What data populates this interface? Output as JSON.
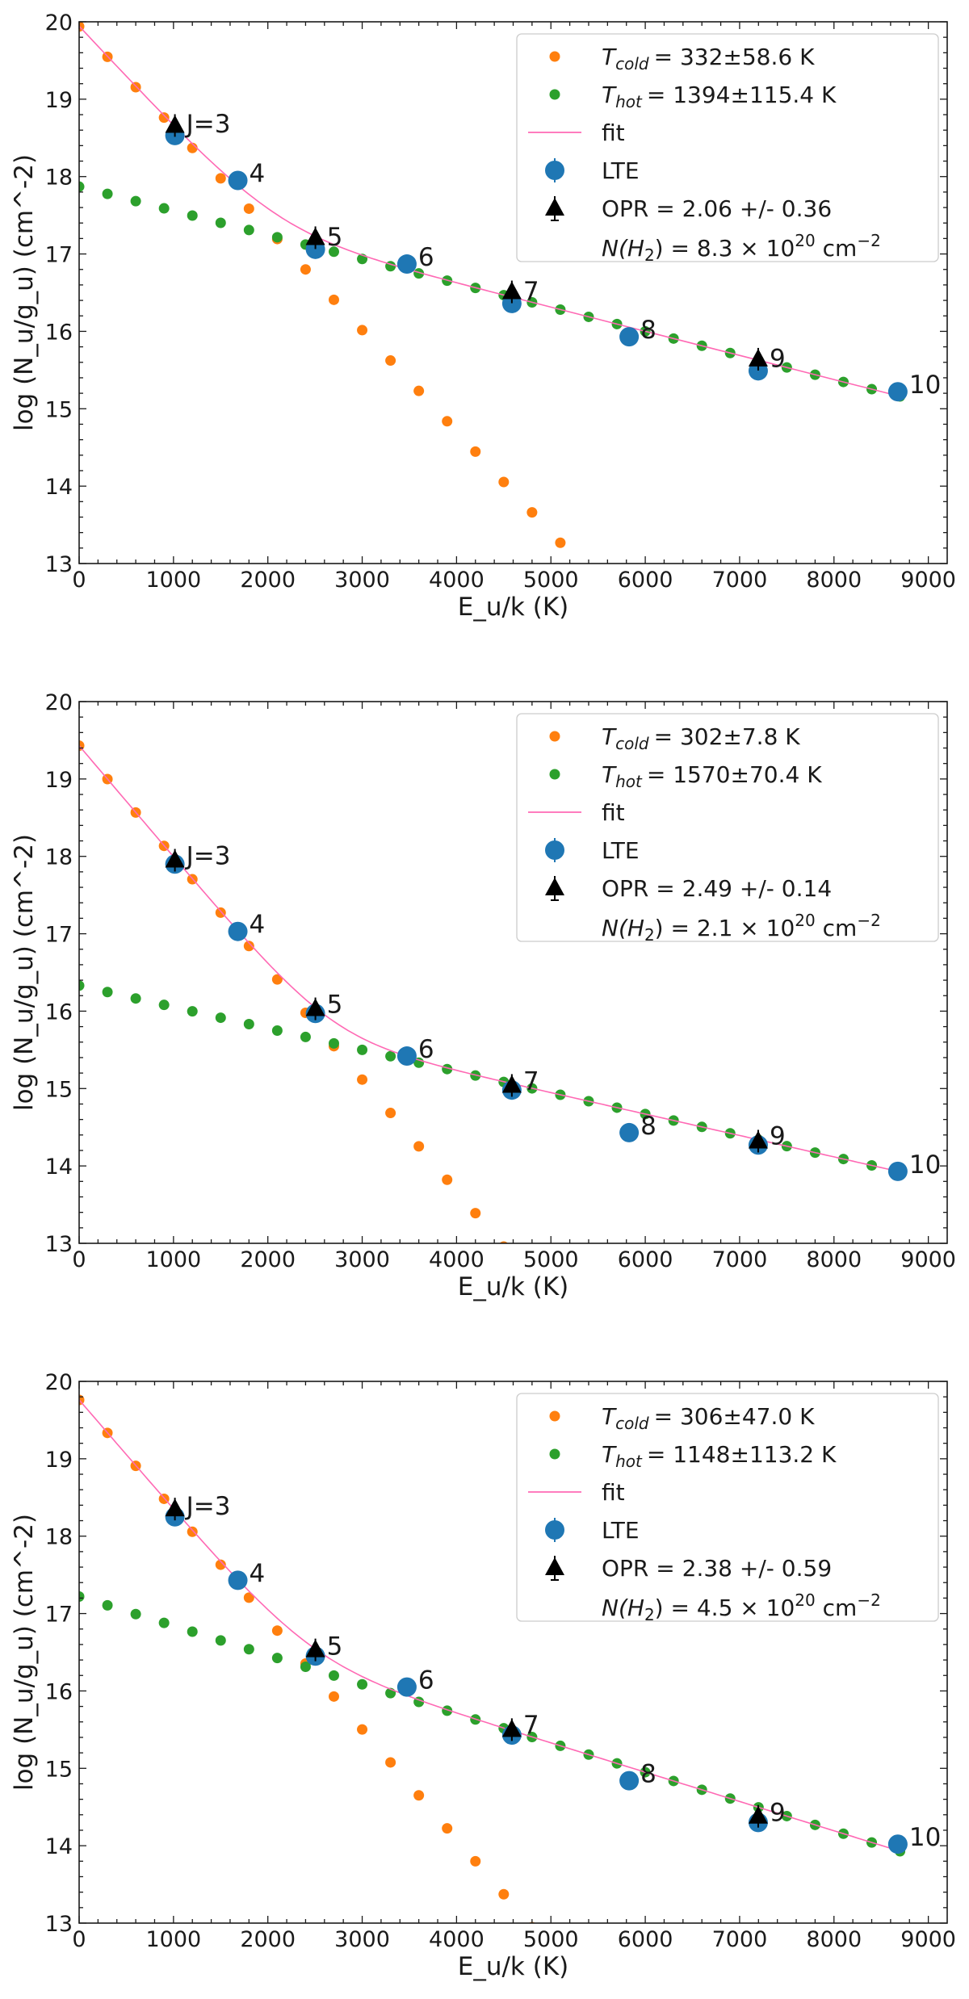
{
  "chart_data": [
    {
      "type": "scatter",
      "xlabel": "E_u/k (K)",
      "ylabel": "log (N_u/g_u) (cm^-2)",
      "xlim": [
        0,
        9200
      ],
      "ylim": [
        13,
        20
      ],
      "xticks": [
        0,
        1000,
        2000,
        3000,
        4000,
        5000,
        6000,
        7000,
        8000,
        9000
      ],
      "yticks": [
        13,
        14,
        15,
        16,
        17,
        18,
        19,
        20
      ],
      "legend": {
        "position": "top-right",
        "cold": {
          "label": "T",
          "sub": "cold",
          "value": "= 332±58.6 K"
        },
        "hot": {
          "label": "T",
          "sub": "hot",
          "value": "= 1394±115.4 K"
        },
        "fit": "fit",
        "lte": "LTE",
        "opr": "OPR = 2.06 +/- 0.36",
        "column": {
          "prefix": "N(H",
          "sub": "2",
          "mid": ") = 8.3 × 10",
          "exp": "20",
          "unit": " cm",
          "unit_exp": "−2"
        }
      },
      "model": {
        "cold_amp": 19.94,
        "cold_temp": 332,
        "hot_amp": 17.87,
        "hot_temp": 1394
      },
      "lte_points": [
        {
          "x": 1015,
          "y": 18.53,
          "err": 0.05
        },
        {
          "x": 1682,
          "y": 17.95,
          "err": 0.05
        },
        {
          "x": 2504,
          "y": 17.06,
          "err": 0.05
        },
        {
          "x": 3474,
          "y": 16.87,
          "err": 0.05
        },
        {
          "x": 4586,
          "y": 16.36,
          "err": 0.05
        },
        {
          "x": 5829,
          "y": 15.93,
          "err": 0.05
        },
        {
          "x": 7197,
          "y": 15.49,
          "err": 0.05
        },
        {
          "x": 8677,
          "y": 15.22,
          "err": 0.05
        }
      ],
      "opr_points": [
        {
          "x": 1015,
          "y": 18.66
        },
        {
          "x": 2504,
          "y": 17.21
        },
        {
          "x": 4586,
          "y": 16.51
        },
        {
          "x": 7197,
          "y": 15.64
        }
      ],
      "j_labels": [
        {
          "x": 1015,
          "y": 18.59,
          "text": "J=3"
        },
        {
          "x": 1682,
          "y": 17.95,
          "text": "4"
        },
        {
          "x": 2504,
          "y": 17.13,
          "text": "5"
        },
        {
          "x": 3474,
          "y": 16.87,
          "text": "6"
        },
        {
          "x": 4586,
          "y": 16.43,
          "text": "7"
        },
        {
          "x": 5829,
          "y": 15.93,
          "text": "8"
        },
        {
          "x": 7197,
          "y": 15.56,
          "text": "9"
        },
        {
          "x": 8677,
          "y": 15.22,
          "text": "10"
        }
      ]
    },
    {
      "type": "scatter",
      "xlabel": "E_u/k (K)",
      "ylabel": "log (N_u/g_u) (cm^-2)",
      "xlim": [
        0,
        9200
      ],
      "ylim": [
        13,
        20
      ],
      "xticks": [
        0,
        1000,
        2000,
        3000,
        4000,
        5000,
        6000,
        7000,
        8000,
        9000
      ],
      "yticks": [
        13,
        14,
        15,
        16,
        17,
        18,
        19,
        20
      ],
      "legend": {
        "position": "top-right",
        "cold": {
          "label": "T",
          "sub": "cold",
          "value": "= 302±7.8 K"
        },
        "hot": {
          "label": "T",
          "sub": "hot",
          "value": "= 1570±70.4 K"
        },
        "fit": "fit",
        "lte": "LTE",
        "opr": "OPR = 2.49 +/- 0.14",
        "column": {
          "prefix": "N(H",
          "sub": "2",
          "mid": ") = 2.1 × 10",
          "exp": "20",
          "unit": " cm",
          "unit_exp": "−2"
        }
      },
      "model": {
        "cold_amp": 19.43,
        "cold_temp": 302,
        "hot_amp": 16.33,
        "hot_temp": 1570
      },
      "lte_points": [
        {
          "x": 1015,
          "y": 17.9,
          "err": 0.05
        },
        {
          "x": 1682,
          "y": 17.03,
          "err": 0.05
        },
        {
          "x": 2504,
          "y": 15.97,
          "err": 0.05
        },
        {
          "x": 3474,
          "y": 15.42,
          "err": 0.05
        },
        {
          "x": 4586,
          "y": 14.98,
          "err": 0.05
        },
        {
          "x": 5829,
          "y": 14.43,
          "err": 0.05
        },
        {
          "x": 7197,
          "y": 14.27,
          "err": 0.05
        },
        {
          "x": 8677,
          "y": 13.93,
          "err": 0.12
        }
      ],
      "opr_points": [
        {
          "x": 1015,
          "y": 17.95
        },
        {
          "x": 2504,
          "y": 16.03
        },
        {
          "x": 4586,
          "y": 15.04
        },
        {
          "x": 7197,
          "y": 14.32
        }
      ],
      "j_labels": [
        {
          "x": 1015,
          "y": 17.92,
          "text": "J=3"
        },
        {
          "x": 1682,
          "y": 17.03,
          "text": "4"
        },
        {
          "x": 2504,
          "y": 16.0,
          "text": "5"
        },
        {
          "x": 3474,
          "y": 15.42,
          "text": "6"
        },
        {
          "x": 4586,
          "y": 15.01,
          "text": "7"
        },
        {
          "x": 5829,
          "y": 14.43,
          "text": "8"
        },
        {
          "x": 7197,
          "y": 14.3,
          "text": "9"
        },
        {
          "x": 8677,
          "y": 13.93,
          "text": "10"
        }
      ]
    },
    {
      "type": "scatter",
      "xlabel": "E_u/k (K)",
      "ylabel": "log (N_u/g_u) (cm^-2)",
      "xlim": [
        0,
        9200
      ],
      "ylim": [
        13,
        20
      ],
      "xticks": [
        0,
        1000,
        2000,
        3000,
        4000,
        5000,
        6000,
        7000,
        8000,
        9000
      ],
      "yticks": [
        13,
        14,
        15,
        16,
        17,
        18,
        19,
        20
      ],
      "legend": {
        "position": "top-right",
        "cold": {
          "label": "T",
          "sub": "cold",
          "value": "= 306±47.0 K"
        },
        "hot": {
          "label": "T",
          "sub": "hot",
          "value": "= 1148±113.2 K"
        },
        "fit": "fit",
        "lte": "LTE",
        "opr": "OPR = 2.38 +/- 0.59",
        "column": {
          "prefix": "N(H",
          "sub": "2",
          "mid": ") = 4.5 × 10",
          "exp": "20",
          "unit": " cm",
          "unit_exp": "−2"
        }
      },
      "model": {
        "cold_amp": 19.76,
        "cold_temp": 306,
        "hot_amp": 17.22,
        "hot_temp": 1148
      },
      "lte_points": [
        {
          "x": 1015,
          "y": 18.25,
          "err": 0.05
        },
        {
          "x": 1682,
          "y": 17.43,
          "err": 0.05
        },
        {
          "x": 2504,
          "y": 16.45,
          "err": 0.05
        },
        {
          "x": 3474,
          "y": 16.05,
          "err": 0.05
        },
        {
          "x": 4586,
          "y": 15.43,
          "err": 0.05
        },
        {
          "x": 5829,
          "y": 14.84,
          "err": 0.05
        },
        {
          "x": 7197,
          "y": 14.3,
          "err": 0.05
        },
        {
          "x": 8677,
          "y": 14.02,
          "err": 0.05
        }
      ],
      "opr_points": [
        {
          "x": 1015,
          "y": 18.35
        },
        {
          "x": 2504,
          "y": 16.53
        },
        {
          "x": 4586,
          "y": 15.5
        },
        {
          "x": 7197,
          "y": 14.38
        }
      ],
      "j_labels": [
        {
          "x": 1015,
          "y": 18.3,
          "text": "J=3"
        },
        {
          "x": 1682,
          "y": 17.43,
          "text": "4"
        },
        {
          "x": 2504,
          "y": 16.49,
          "text": "5"
        },
        {
          "x": 3474,
          "y": 16.05,
          "text": "6"
        },
        {
          "x": 4586,
          "y": 15.47,
          "text": "7"
        },
        {
          "x": 5829,
          "y": 14.84,
          "text": "8"
        },
        {
          "x": 7197,
          "y": 14.34,
          "text": "9"
        },
        {
          "x": 8677,
          "y": 14.02,
          "text": "10"
        }
      ]
    }
  ],
  "colors": {
    "cold": "#ff7f0e",
    "hot": "#2ca02c",
    "fit": "#ff69b4",
    "lte": "#1f77b4",
    "opr": "#000000",
    "axis": "#1a1a1a"
  }
}
